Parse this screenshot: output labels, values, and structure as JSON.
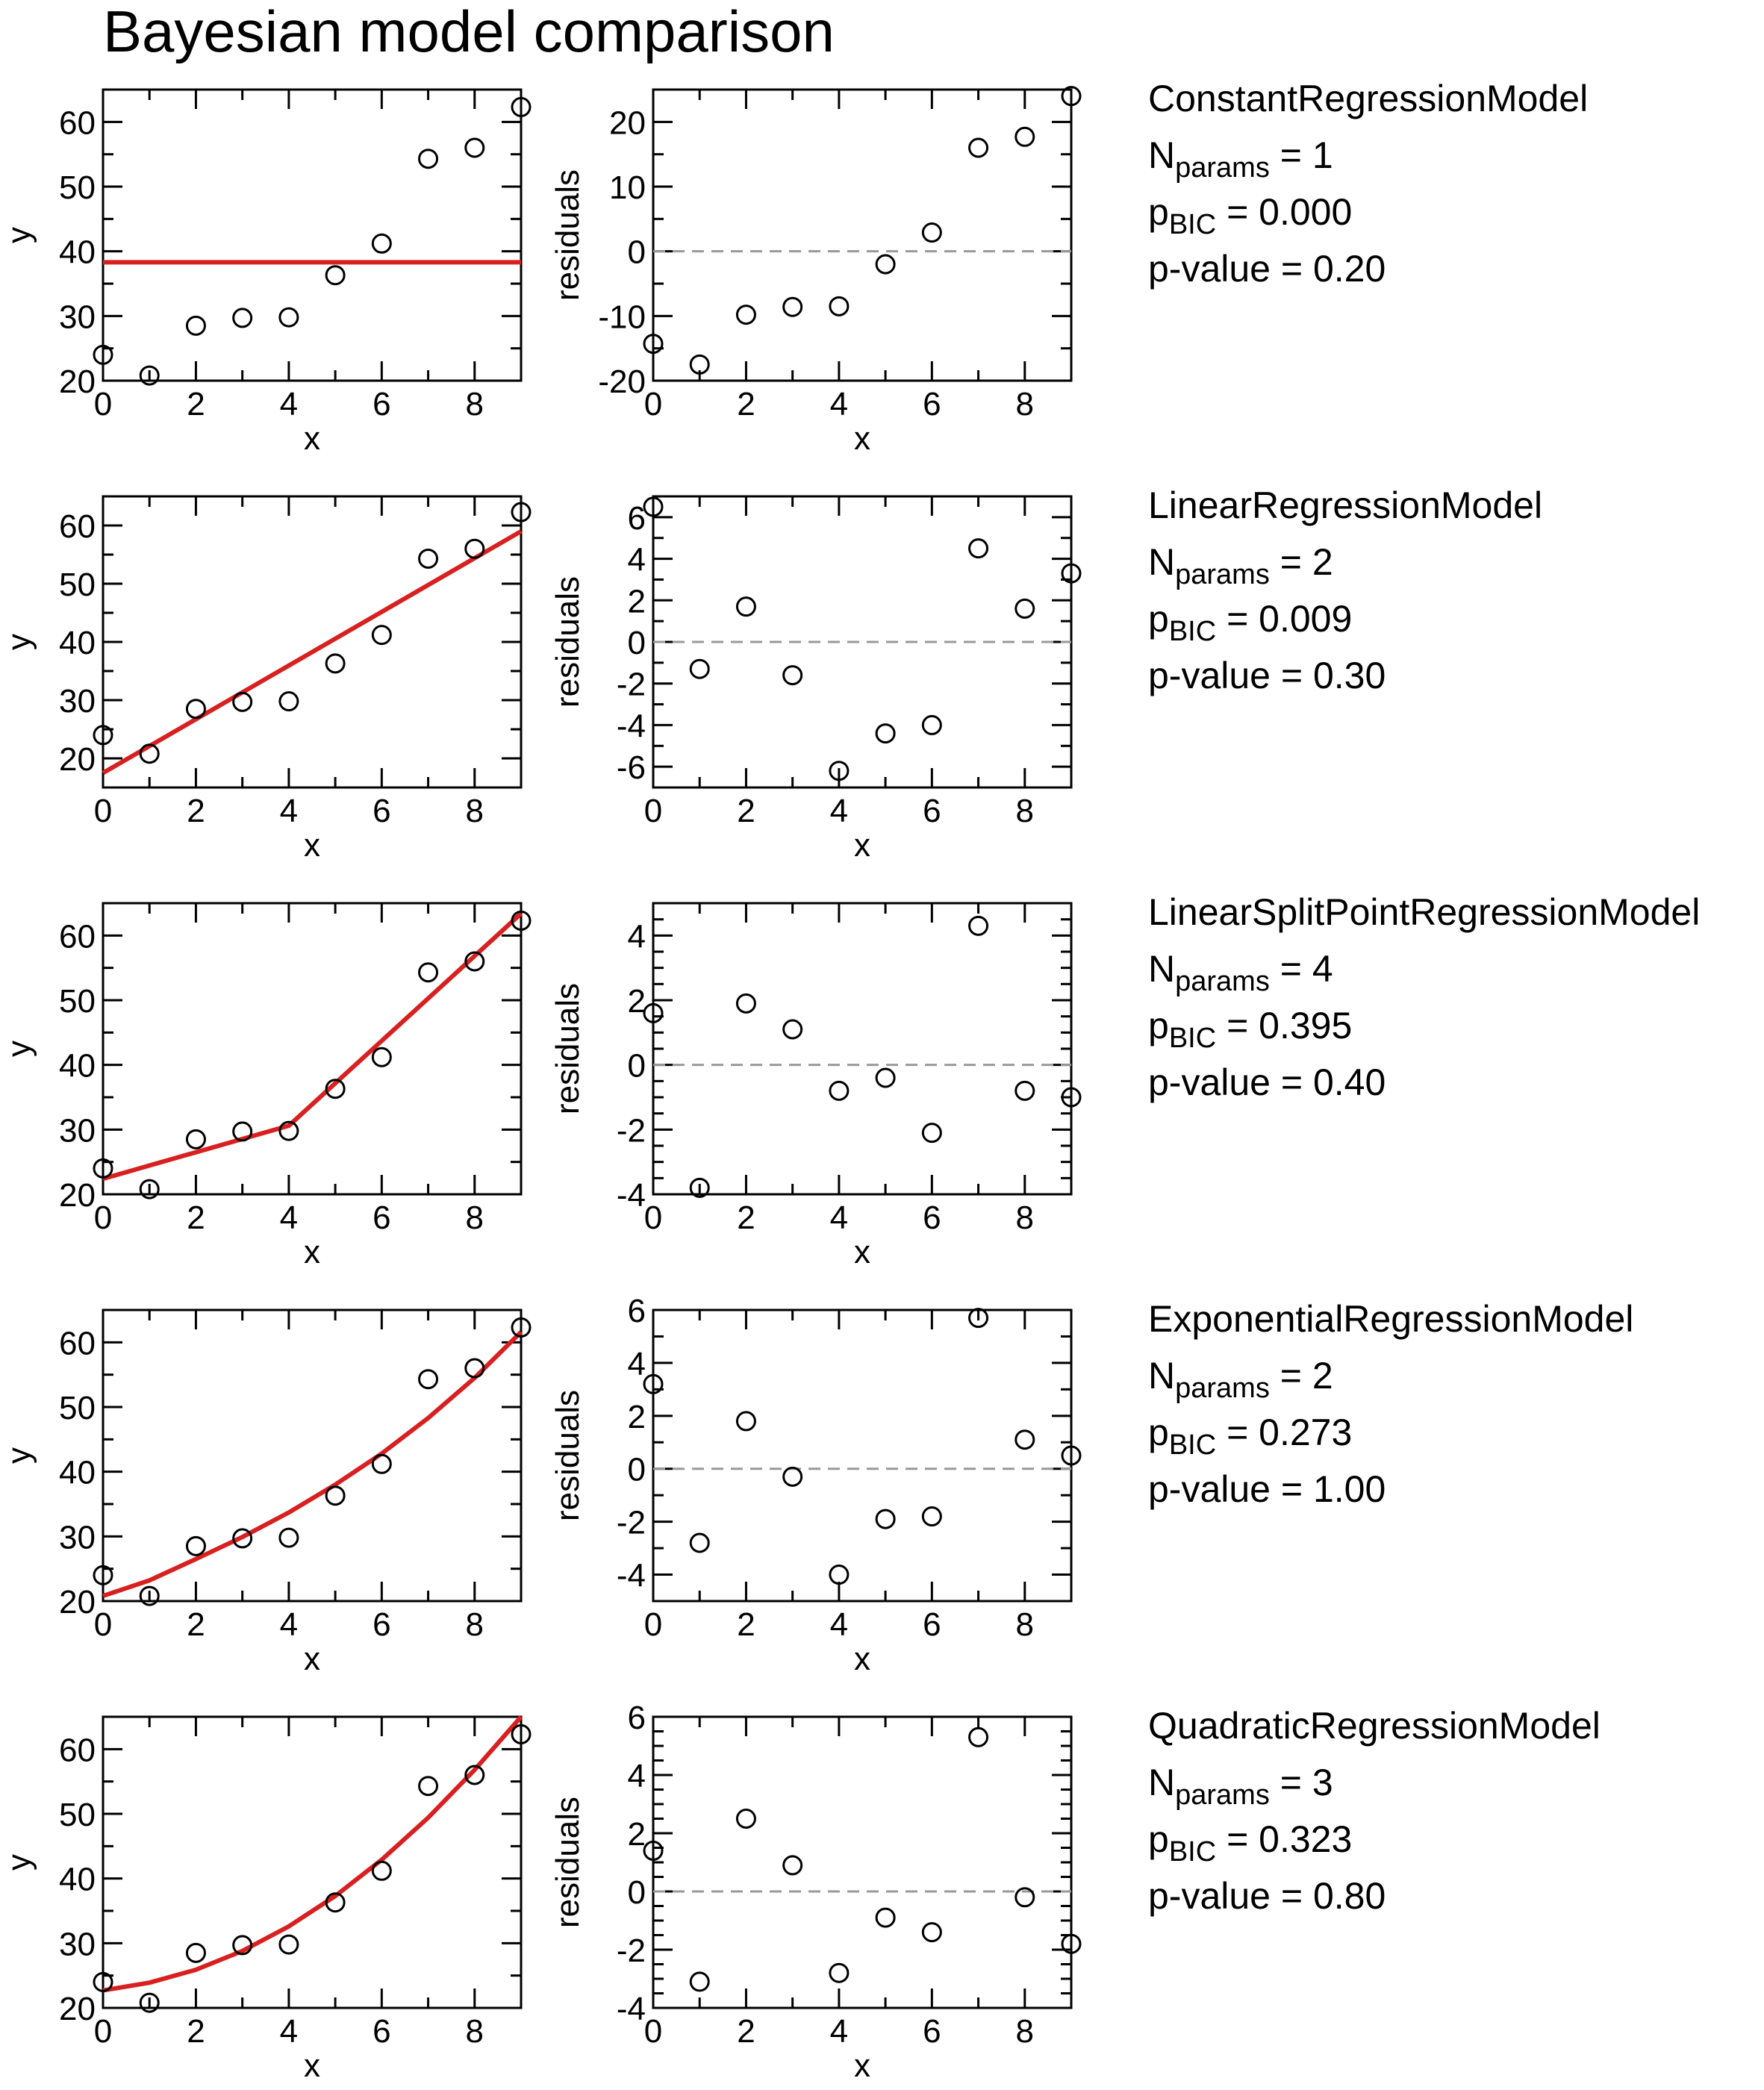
{
  "title": "Bayesian model comparison",
  "colors": {
    "fit": "#d92020",
    "points": "#000000",
    "zero_line": "#999999"
  },
  "text": {
    "nparams_main": "N",
    "nparams_sub": "params",
    "pbic_main": "p",
    "pbic_sub": "BIC",
    "pvalue_label": "p-value"
  },
  "models": [
    {
      "name": "ConstantRegressionModel",
      "n_params": "1",
      "p_bic": "0.000",
      "p_value": "0.20"
    },
    {
      "name": "LinearRegressionModel",
      "n_params": "2",
      "p_bic": "0.009",
      "p_value": "0.30"
    },
    {
      "name": "LinearSplitPointRegressionModel",
      "n_params": "4",
      "p_bic": "0.395",
      "p_value": "0.40"
    },
    {
      "name": "ExponentialRegressionModel",
      "n_params": "2",
      "p_bic": "0.273",
      "p_value": "1.00"
    },
    {
      "name": "QuadraticRegressionModel",
      "n_params": "3",
      "p_bic": "0.323",
      "p_value": "0.80"
    }
  ],
  "chart_data": [
    {
      "type": "scatter",
      "model": "ConstantRegressionModel",
      "panel": "fit",
      "xlabel": "x",
      "ylabel": "y",
      "xlim": [
        0,
        9
      ],
      "ylim": [
        20,
        65
      ],
      "x_ticks": [
        0,
        2,
        4,
        6,
        8
      ],
      "y_ticks": [
        20,
        30,
        40,
        50,
        60
      ],
      "x": [
        0,
        1,
        2,
        3,
        4,
        5,
        6,
        7,
        8,
        9
      ],
      "y": [
        24,
        20.8,
        28.5,
        29.7,
        29.8,
        36.3,
        41.2,
        54.3,
        56,
        62.3
      ],
      "fit_x": [
        0,
        9
      ],
      "fit_y": [
        38.3,
        38.3
      ]
    },
    {
      "type": "scatter",
      "model": "ConstantRegressionModel",
      "panel": "residuals",
      "xlabel": "x",
      "ylabel": "residuals",
      "xlim": [
        0,
        9
      ],
      "ylim": [
        -20,
        25
      ],
      "x_ticks": [
        0,
        2,
        4,
        6,
        8
      ],
      "y_ticks": [
        -20,
        -10,
        0,
        10,
        20
      ],
      "x": [
        0,
        1,
        2,
        3,
        4,
        5,
        6,
        7,
        8,
        9
      ],
      "y": [
        -14.3,
        -17.5,
        -9.8,
        -8.6,
        -8.5,
        -2,
        2.9,
        16,
        17.7,
        24
      ]
    },
    {
      "type": "scatter",
      "model": "LinearRegressionModel",
      "panel": "fit",
      "xlabel": "x",
      "ylabel": "y",
      "xlim": [
        0,
        9
      ],
      "ylim": [
        15,
        65
      ],
      "x_ticks": [
        0,
        2,
        4,
        6,
        8
      ],
      "y_ticks": [
        20,
        30,
        40,
        50,
        60
      ],
      "x": [
        0,
        1,
        2,
        3,
        4,
        5,
        6,
        7,
        8,
        9
      ],
      "y": [
        24,
        20.8,
        28.5,
        29.7,
        29.8,
        36.3,
        41.2,
        54.3,
        56,
        62.3
      ],
      "fit_x": [
        0,
        9
      ],
      "fit_y": [
        17.5,
        59
      ]
    },
    {
      "type": "scatter",
      "model": "LinearRegressionModel",
      "panel": "residuals",
      "xlabel": "x",
      "ylabel": "residuals",
      "xlim": [
        0,
        9
      ],
      "ylim": [
        -7,
        7
      ],
      "x_ticks": [
        0,
        2,
        4,
        6,
        8
      ],
      "y_ticks": [
        -6,
        -4,
        -2,
        0,
        2,
        4,
        6
      ],
      "x": [
        0,
        1,
        2,
        3,
        4,
        5,
        6,
        7,
        8,
        9
      ],
      "y": [
        6.5,
        -1.3,
        1.7,
        -1.6,
        -6.2,
        -4.4,
        -4,
        4.5,
        1.6,
        3.3
      ]
    },
    {
      "type": "scatter",
      "model": "LinearSplitPointRegressionModel",
      "panel": "fit",
      "xlabel": "x",
      "ylabel": "y",
      "xlim": [
        0,
        9
      ],
      "ylim": [
        20,
        65
      ],
      "x_ticks": [
        0,
        2,
        4,
        6,
        8
      ],
      "y_ticks": [
        20,
        30,
        40,
        50,
        60
      ],
      "x": [
        0,
        1,
        2,
        3,
        4,
        5,
        6,
        7,
        8,
        9
      ],
      "y": [
        24,
        20.8,
        28.5,
        29.7,
        29.8,
        36.3,
        41.2,
        54.3,
        56,
        62.3
      ],
      "fit_x": [
        0,
        4,
        9
      ],
      "fit_y": [
        22.4,
        30.6,
        63.4
      ]
    },
    {
      "type": "scatter",
      "model": "LinearSplitPointRegressionModel",
      "panel": "residuals",
      "xlabel": "x",
      "ylabel": "residuals",
      "xlim": [
        0,
        9
      ],
      "ylim": [
        -4,
        5
      ],
      "x_ticks": [
        0,
        2,
        4,
        6,
        8
      ],
      "y_ticks": [
        -4,
        -2,
        0,
        2,
        4
      ],
      "x": [
        0,
        1,
        2,
        3,
        4,
        5,
        6,
        7,
        8,
        9
      ],
      "y": [
        1.6,
        -3.8,
        1.9,
        1.1,
        -0.8,
        -0.4,
        -2.1,
        4.3,
        -0.8,
        -1
      ]
    },
    {
      "type": "scatter",
      "model": "ExponentialRegressionModel",
      "panel": "fit",
      "xlabel": "x",
      "ylabel": "y",
      "xlim": [
        0,
        9
      ],
      "ylim": [
        20,
        65
      ],
      "x_ticks": [
        0,
        2,
        4,
        6,
        8
      ],
      "y_ticks": [
        20,
        30,
        40,
        50,
        60
      ],
      "x": [
        0,
        1,
        2,
        3,
        4,
        5,
        6,
        7,
        8,
        9
      ],
      "y": [
        24,
        20.8,
        28.5,
        29.7,
        29.8,
        36.3,
        41.2,
        54.3,
        56,
        62.3
      ],
      "fit_x": [
        0,
        1,
        2,
        3,
        4,
        5,
        6,
        7,
        8,
        9
      ],
      "fit_y": [
        20.8,
        23.2,
        26.5,
        29.9,
        33.7,
        38.0,
        42.8,
        48.3,
        54.5,
        61.6
      ]
    },
    {
      "type": "scatter",
      "model": "ExponentialRegressionModel",
      "panel": "residuals",
      "xlabel": "x",
      "ylabel": "residuals",
      "xlim": [
        0,
        9
      ],
      "ylim": [
        -5,
        6
      ],
      "x_ticks": [
        0,
        2,
        4,
        6,
        8
      ],
      "y_ticks": [
        -4,
        -2,
        0,
        2,
        4,
        6
      ],
      "x": [
        0,
        1,
        2,
        3,
        4,
        5,
        6,
        7,
        8,
        9
      ],
      "y": [
        3.2,
        -2.8,
        1.8,
        -0.3,
        -4,
        -1.9,
        -1.8,
        5.7,
        1.1,
        0.5
      ]
    },
    {
      "type": "scatter",
      "model": "QuadraticRegressionModel",
      "panel": "fit",
      "xlabel": "x",
      "ylabel": "y",
      "xlim": [
        0,
        9
      ],
      "ylim": [
        20,
        65
      ],
      "x_ticks": [
        0,
        2,
        4,
        6,
        8
      ],
      "y_ticks": [
        20,
        30,
        40,
        50,
        60
      ],
      "x": [
        0,
        1,
        2,
        3,
        4,
        5,
        6,
        7,
        8,
        9
      ],
      "y": [
        24,
        20.8,
        28.5,
        29.7,
        29.8,
        36.3,
        41.2,
        54.3,
        56,
        62.3
      ],
      "fit_x": [
        0,
        1,
        2,
        3,
        4,
        5,
        6,
        7,
        8,
        9
      ],
      "fit_y": [
        22.7,
        23.9,
        25.9,
        28.8,
        32.6,
        37.3,
        42.9,
        49.4,
        56.8,
        65
      ]
    },
    {
      "type": "scatter",
      "model": "QuadraticRegressionModel",
      "panel": "residuals",
      "xlabel": "x",
      "ylabel": "residuals",
      "xlim": [
        0,
        9
      ],
      "ylim": [
        -4,
        6
      ],
      "x_ticks": [
        0,
        2,
        4,
        6,
        8
      ],
      "y_ticks": [
        -4,
        -2,
        0,
        2,
        4,
        6
      ],
      "x": [
        0,
        1,
        2,
        3,
        4,
        5,
        6,
        7,
        8,
        9
      ],
      "y": [
        1.4,
        -3.1,
        2.5,
        0.9,
        -2.8,
        -0.9,
        -1.4,
        5.3,
        -0.2,
        -1.8
      ]
    }
  ]
}
